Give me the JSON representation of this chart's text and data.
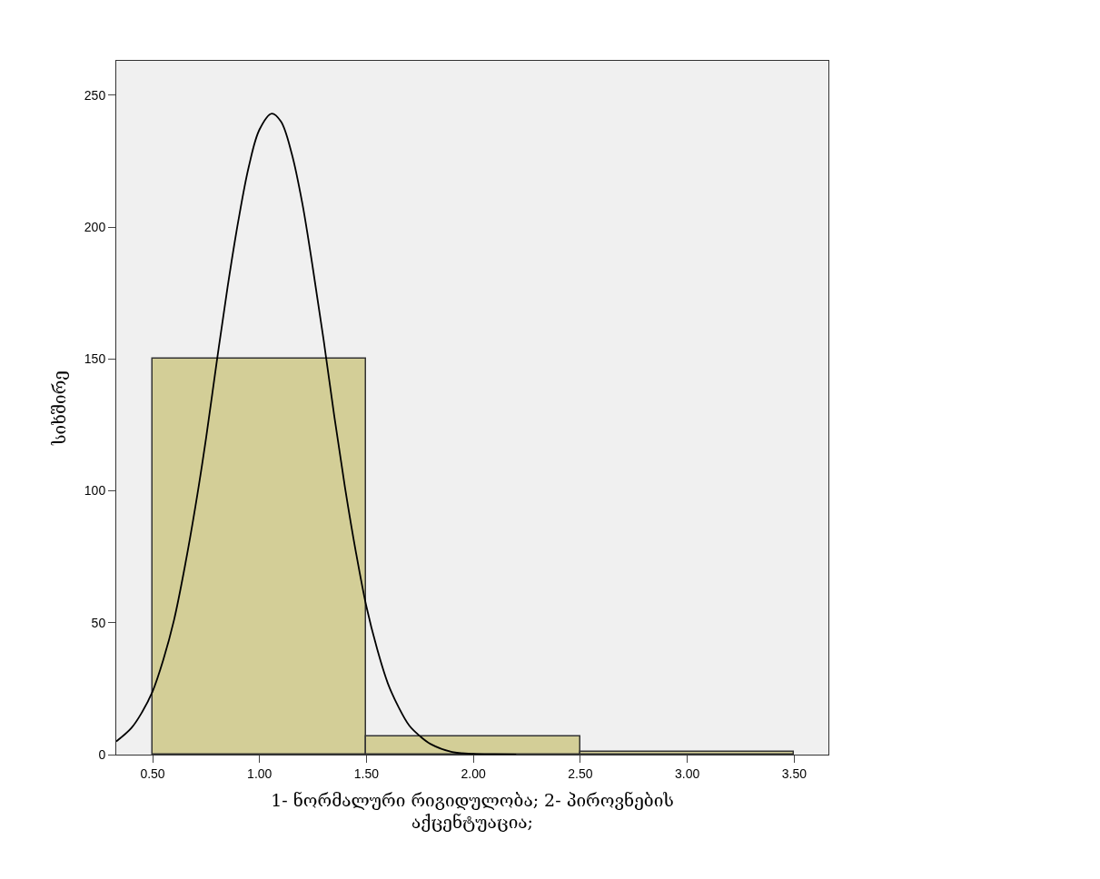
{
  "chart_data": {
    "type": "histogram",
    "xlabel": "1- ნორმალური რიგიდულობა; 2- პიროვნების აქცენტუაცია;",
    "ylabel": "სიხშირე",
    "bins": [
      0.5,
      1.5,
      2.5,
      3.5
    ],
    "values": [
      150,
      7,
      1
    ],
    "color": "#d3ce97",
    "series": [
      {
        "type": "line",
        "color": "#000000",
        "x": [
          0.33,
          0.4,
          0.45,
          0.5,
          0.55,
          0.6,
          0.65,
          0.7,
          0.75,
          0.8,
          0.85,
          0.9,
          0.95,
          1.0,
          1.057,
          1.1,
          1.15,
          1.2,
          1.25,
          1.3,
          1.35,
          1.4,
          1.45,
          1.5,
          1.55,
          1.6,
          1.65,
          1.7,
          1.75,
          1.8,
          1.9,
          2.0,
          2.1,
          2.2
        ],
        "values": [
          5,
          10,
          16,
          24,
          36,
          51,
          71,
          94,
          120,
          149,
          177,
          202,
          223,
          237,
          243,
          240,
          228,
          209,
          184,
          157,
          128,
          101,
          77,
          56,
          40,
          27,
          18,
          11,
          7,
          4,
          1,
          0.3,
          0.1,
          0
        ]
      }
    ],
    "xlim": [
      0.33,
      3.66
    ],
    "ylim": [
      0,
      263
    ],
    "xticks": [
      {
        "value": 0.5,
        "label": "0.50"
      },
      {
        "value": 1.0,
        "label": "1.00"
      },
      {
        "value": 1.5,
        "label": "1.50"
      },
      {
        "value": 2.0,
        "label": "2.00"
      },
      {
        "value": 2.5,
        "label": "2.50"
      },
      {
        "value": 3.0,
        "label": "3.00"
      },
      {
        "value": 3.5,
        "label": "3.50"
      }
    ],
    "yticks": [
      0,
      50,
      100,
      150,
      200,
      250
    ],
    "grid": false,
    "marker": "none",
    "line_style": "solid"
  }
}
